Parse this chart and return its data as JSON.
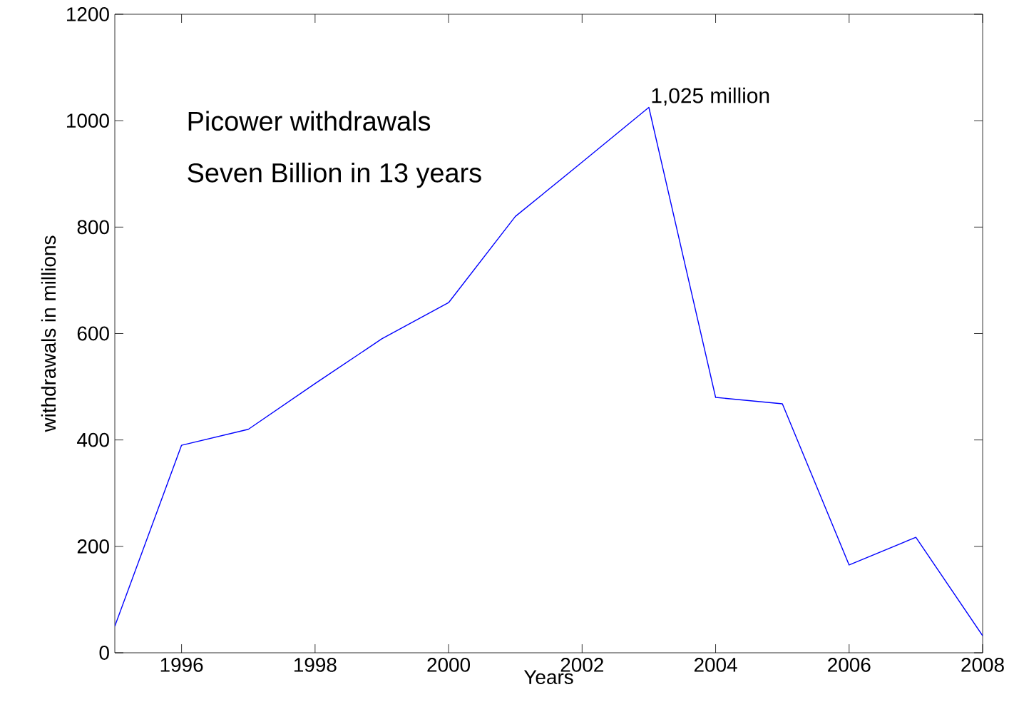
{
  "chart_data": {
    "type": "line",
    "xlabel": "Years",
    "ylabel": "withdrawals in millions",
    "x": [
      1995,
      1996,
      1997,
      1998,
      1999,
      2000,
      2001,
      2002,
      2003,
      2004,
      2005,
      2006,
      2007,
      2008
    ],
    "series": [
      {
        "color": "#0000ff",
        "values": [
          50,
          390,
          420,
          506,
          590,
          658,
          820,
          922,
          1025,
          480,
          468,
          165,
          217,
          32
        ]
      }
    ],
    "xlim": [
      1995,
      2008
    ],
    "ylim": [
      0,
      1200
    ],
    "xticks": [
      1996,
      1998,
      2000,
      2002,
      2004,
      2006,
      2008
    ],
    "yticks": [
      0,
      200,
      400,
      600,
      800,
      1000,
      1200
    ],
    "grid": false,
    "marker": "none",
    "line_style": "solid",
    "annotations": [
      "Picower withdrawals",
      "Seven Billion in 13 years",
      {
        "text": "1,025 million",
        "x": 2003,
        "y": 1025
      }
    ]
  }
}
